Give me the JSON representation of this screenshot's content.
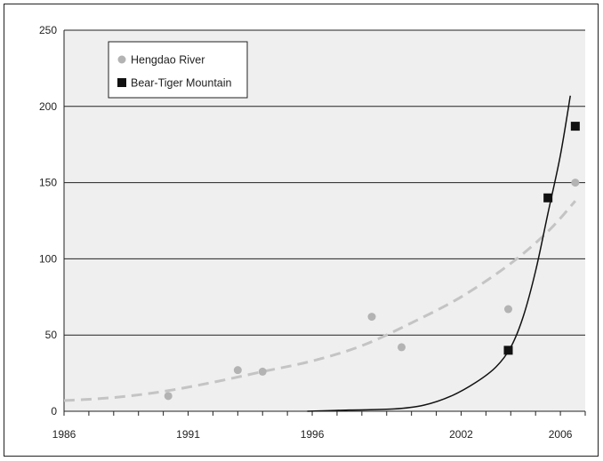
{
  "chart_data": {
    "type": "scatter",
    "title": "",
    "xlabel": "",
    "ylabel": "",
    "xlim": [
      1986,
      2007
    ],
    "ylim": [
      0,
      250
    ],
    "x_ticks": [
      "1986",
      "1991",
      "1996",
      "2002",
      "2006"
    ],
    "y_ticks": [
      "0",
      "50",
      "100",
      "150",
      "200",
      "250"
    ],
    "grid": "horizontal",
    "legend_position": "top-left",
    "series": [
      {
        "name": "Hengdao River",
        "marker": "circle",
        "color": "#b3b3b3",
        "points": [
          {
            "x": 1990.2,
            "y": 10
          },
          {
            "x": 1993.0,
            "y": 27
          },
          {
            "x": 1994.0,
            "y": 26
          },
          {
            "x": 1998.4,
            "y": 62
          },
          {
            "x": 1999.6,
            "y": 42
          },
          {
            "x": 2003.9,
            "y": 67
          },
          {
            "x": 2006.6,
            "y": 150
          }
        ],
        "trend": {
          "style": "dashed",
          "points": [
            {
              "x": 1986,
              "y": 7
            },
            {
              "x": 1988,
              "y": 9
            },
            {
              "x": 1990,
              "y": 13
            },
            {
              "x": 1992,
              "y": 19
            },
            {
              "x": 1994,
              "y": 26
            },
            {
              "x": 1996,
              "y": 33
            },
            {
              "x": 1998,
              "y": 43
            },
            {
              "x": 2000,
              "y": 58
            },
            {
              "x": 2002,
              "y": 75
            },
            {
              "x": 2004,
              "y": 97
            },
            {
              "x": 2005.5,
              "y": 118
            },
            {
              "x": 2006.6,
              "y": 138
            }
          ]
        }
      },
      {
        "name": "Bear-Tiger Mountain",
        "marker": "square",
        "color": "#111111",
        "points": [
          {
            "x": 2003.9,
            "y": 40
          },
          {
            "x": 2005.5,
            "y": 140
          },
          {
            "x": 2006.6,
            "y": 187
          }
        ],
        "trend": {
          "style": "solid",
          "points": [
            {
              "x": 1995.8,
              "y": 0
            },
            {
              "x": 1997.5,
              "y": 0.8
            },
            {
              "x": 1999.3,
              "y": 1.5
            },
            {
              "x": 2000.5,
              "y": 4
            },
            {
              "x": 2001.6,
              "y": 10
            },
            {
              "x": 2002.6,
              "y": 19
            },
            {
              "x": 2003.4,
              "y": 29
            },
            {
              "x": 2004.0,
              "y": 42
            },
            {
              "x": 2004.5,
              "y": 62
            },
            {
              "x": 2005.0,
              "y": 92
            },
            {
              "x": 2005.5,
              "y": 130
            },
            {
              "x": 2006.0,
              "y": 168
            },
            {
              "x": 2006.4,
              "y": 207
            }
          ]
        }
      }
    ]
  }
}
